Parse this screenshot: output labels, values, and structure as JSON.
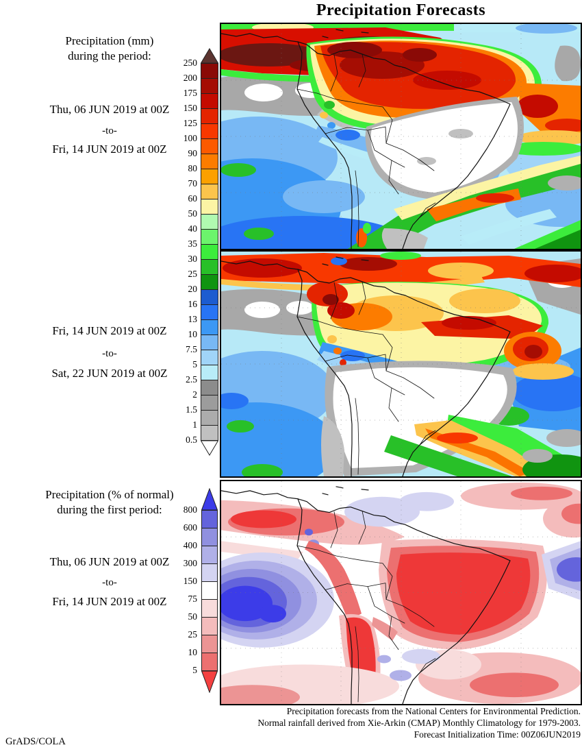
{
  "title": "Precipitation Forecasts",
  "left_panel": {
    "mm_header": {
      "line1": "Precipitation (mm)",
      "line2": "during the period:"
    },
    "period1": {
      "from": "Thu, 06 JUN 2019 at 00Z",
      "sep": "-to-",
      "to": "Fri, 14 JUN 2019 at 00Z"
    },
    "period2": {
      "from": "Fri, 14 JUN 2019 at 00Z",
      "sep": "-to-",
      "to": "Sat, 22 JUN 2019 at 00Z"
    },
    "pct_header": {
      "line1": "Precipitation (% of normal)",
      "line2": "during the first period:"
    },
    "period3": {
      "from": "Thu, 06 JUN 2019 at 00Z",
      "sep": "-to-",
      "to": "Fri, 14 JUN 2019 at 00Z"
    }
  },
  "legend_mm": {
    "units": "mm",
    "labels": [
      "250",
      "200",
      "175",
      "150",
      "125",
      "100",
      "90",
      "80",
      "70",
      "60",
      "50",
      "40",
      "35",
      "30",
      "25",
      "20",
      "16",
      "13",
      "10",
      "7.5",
      "5",
      "2.5",
      "2",
      "1.5",
      "1",
      "0.5"
    ],
    "box_colors": [
      "#8a0a06",
      "#a50d03",
      "#c40b00",
      "#e42400",
      "#f83800",
      "#fc5a00",
      "#fc7c00",
      "#fca000",
      "#fcc44c",
      "#fcf4a4",
      "#b0fab0",
      "#6cf46c",
      "#3cec3c",
      "#28c028",
      "#109410",
      "#1c5cd0",
      "#2874f4",
      "#3c98f4",
      "#78b8f4",
      "#a0d4f8",
      "#b8ecf8",
      "#8c8c8c",
      "#9c9c9c",
      "#acacac",
      "#c0c0c0"
    ],
    "arrow_top_color": "#5c3430",
    "arrow_bottom_color": "#ffffff"
  },
  "legend_pct": {
    "units": "% of normal",
    "labels": [
      "800",
      "600",
      "400",
      "300",
      "150",
      "75",
      "50",
      "25",
      "10",
      "5"
    ],
    "box_colors": [
      "#6464dc",
      "#9090e0",
      "#b0b0e8",
      "#d4d4f2",
      "#ffffff",
      "#f8dcdc",
      "#f4bcbc",
      "#ec9494",
      "#ec7070"
    ],
    "arrow_top_color": "#3c3ce8",
    "arrow_bottom_color": "#f44040"
  },
  "footer": {
    "line1": "Precipitation forecasts from the National Centers for Environmental Prediction.",
    "line2": "Normal rainfall derived from Xie-Arkin (CMAP) Monthly Climatology for 1979-2003.",
    "line3": "Forecast Initialization Time: 00Z06JUN2019",
    "credit": "GrADS/COLA"
  }
}
